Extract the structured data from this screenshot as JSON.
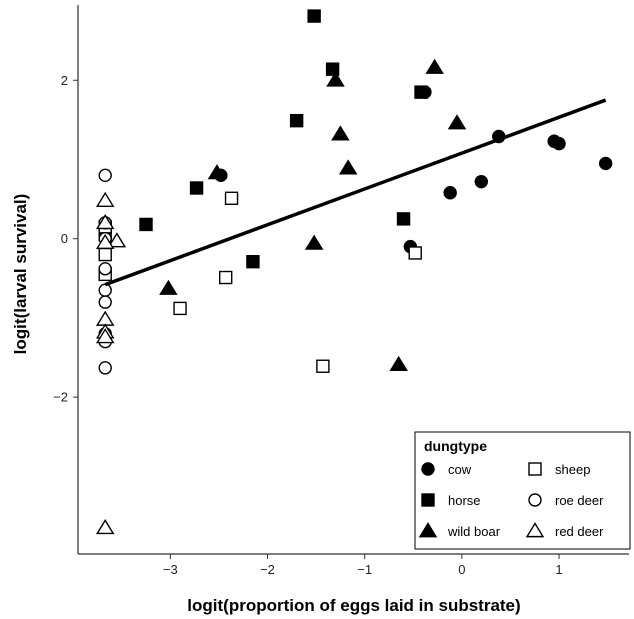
{
  "chart_data": {
    "type": "scatter",
    "xlabel": "logit(proportion of eggs laid in substrate)",
    "ylabel": "logit(larval survival)",
    "xlim": [
      -3.95,
      1.72
    ],
    "ylim": [
      -3.98,
      2.95
    ],
    "xticks": [
      -3,
      -2,
      -1,
      0,
      1
    ],
    "yticks": [
      -2,
      0,
      2
    ],
    "grid": false,
    "legend": {
      "title": "dungtype",
      "placement": "bottom-right",
      "entries": [
        {
          "label": "cow",
          "shape": "circle",
          "filled": true
        },
        {
          "label": "horse",
          "shape": "square",
          "filled": true
        },
        {
          "label": "wild boar",
          "shape": "triangle",
          "filled": true
        },
        {
          "label": "sheep",
          "shape": "square",
          "filled": false
        },
        {
          "label": "roe deer",
          "shape": "circle",
          "filled": false
        },
        {
          "label": "red deer",
          "shape": "triangle",
          "filled": false
        }
      ]
    },
    "fit_line": {
      "x": [
        -3.67,
        1.48
      ],
      "y": [
        -0.58,
        1.75
      ]
    },
    "series": [
      {
        "name": "cow",
        "shape": "circle",
        "filled": true,
        "points": [
          [
            -2.48,
            0.8
          ],
          [
            -0.38,
            1.85
          ],
          [
            -0.53,
            -0.1
          ],
          [
            -0.12,
            0.58
          ],
          [
            0.2,
            0.72
          ],
          [
            0.38,
            1.29
          ],
          [
            0.95,
            1.23
          ],
          [
            1.0,
            1.2
          ],
          [
            1.48,
            0.95
          ]
        ]
      },
      {
        "name": "horse",
        "shape": "square",
        "filled": true,
        "points": [
          [
            -1.52,
            2.81
          ],
          [
            -1.33,
            2.14
          ],
          [
            -1.7,
            1.49
          ],
          [
            -0.42,
            1.85
          ],
          [
            -2.73,
            0.64
          ],
          [
            -3.25,
            0.18
          ],
          [
            -2.15,
            -0.29
          ],
          [
            -0.6,
            0.25
          ],
          [
            -3.67,
            0.05
          ]
        ]
      },
      {
        "name": "wild boar",
        "shape": "triangle",
        "filled": true,
        "points": [
          [
            -1.3,
            2.0
          ],
          [
            -0.28,
            2.16
          ],
          [
            -0.05,
            1.46
          ],
          [
            -1.25,
            1.32
          ],
          [
            -1.17,
            0.89
          ],
          [
            -2.52,
            0.83
          ],
          [
            -1.52,
            -0.06
          ],
          [
            -3.02,
            -0.63
          ],
          [
            -0.65,
            -1.59
          ]
        ]
      },
      {
        "name": "sheep",
        "shape": "square",
        "filled": false,
        "points": [
          [
            -2.37,
            0.51
          ],
          [
            -0.48,
            -0.18
          ],
          [
            -2.43,
            -0.49
          ],
          [
            -2.9,
            -0.88
          ],
          [
            -1.43,
            -1.61
          ],
          [
            -3.67,
            0.15
          ],
          [
            -3.67,
            -0.2
          ],
          [
            -3.67,
            -0.45
          ]
        ]
      },
      {
        "name": "roe deer",
        "shape": "circle",
        "filled": false,
        "points": [
          [
            -3.67,
            0.8
          ],
          [
            -3.67,
            0.2
          ],
          [
            -3.67,
            0.0
          ],
          [
            -3.67,
            -0.38
          ],
          [
            -3.67,
            -0.65
          ],
          [
            -3.67,
            -0.8
          ],
          [
            -3.67,
            -1.2
          ],
          [
            -3.67,
            -1.3
          ],
          [
            -3.67,
            -1.63
          ]
        ]
      },
      {
        "name": "red deer",
        "shape": "triangle",
        "filled": false,
        "points": [
          [
            -3.67,
            0.48
          ],
          [
            -3.67,
            0.2
          ],
          [
            -3.55,
            -0.03
          ],
          [
            -3.67,
            -0.05
          ],
          [
            -3.67,
            -1.02
          ],
          [
            -3.67,
            -1.18
          ],
          [
            -3.67,
            -1.24
          ],
          [
            -3.67,
            -3.65
          ]
        ]
      }
    ]
  }
}
